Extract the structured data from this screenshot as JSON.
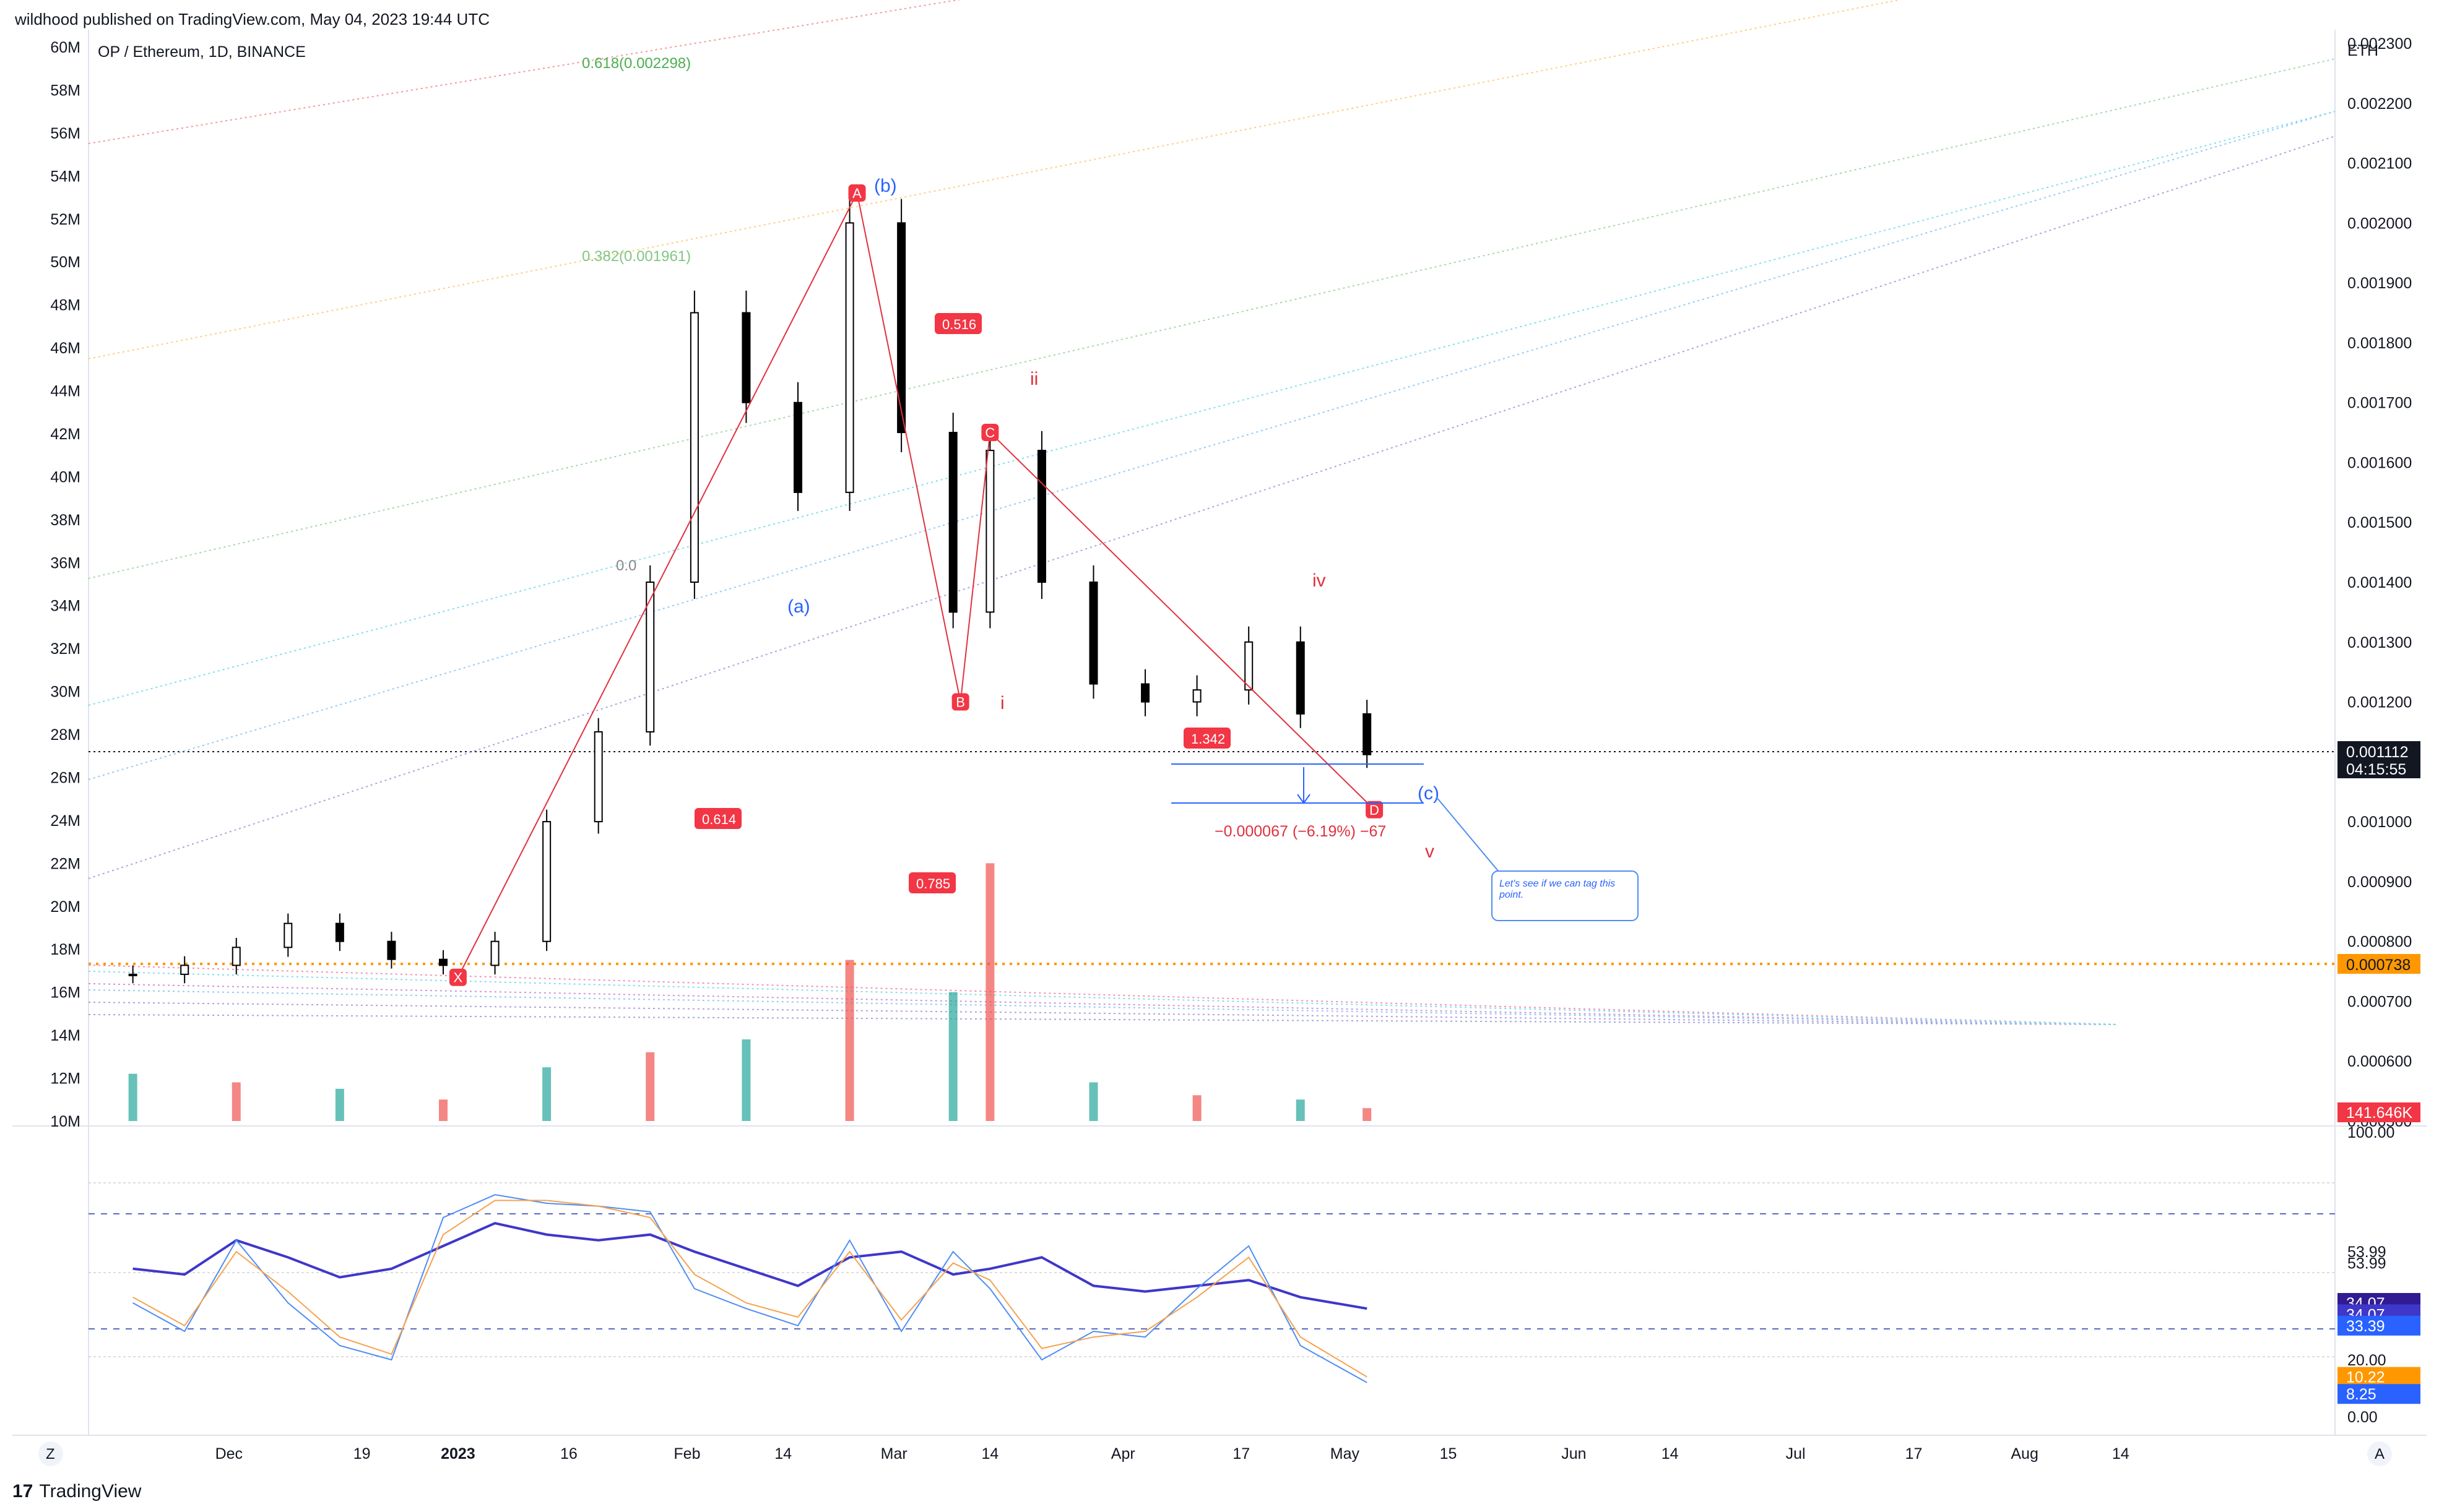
{
  "header": {
    "published": "wildhood published on TradingView.com, May 04, 2023 19:44 UTC"
  },
  "footer": {
    "brand": "TradingView",
    "brand_icon": "tradingview-logo-icon"
  },
  "colors": {
    "candle": "#000000",
    "vol_up": "#26a69a",
    "vol_down": "#ef5350",
    "pattern": "#e0313e",
    "wave_blue": "#2962ff",
    "rsi": "#3f37c9",
    "stoch_k": "#4f8df5",
    "stoch_d": "#f5a34f",
    "tag_red": "#f23645",
    "tag_orange": "#ff9800",
    "tag_dark": "#131722"
  },
  "chart_data": [
    {
      "type": "candlestick",
      "title": "OP / Ethereum, 1D, BINANCE",
      "xlabel": "",
      "ylabel": "",
      "right_axis_unit": "ETH",
      "right_ticks": [
        "0.002300",
        "0.002200",
        "0.002100",
        "0.002000",
        "0.001900",
        "0.001800",
        "0.001700",
        "0.001600",
        "0.001500",
        "0.001400",
        "0.001300",
        "0.001200",
        "0.001100",
        "0.001000",
        "0.000900",
        "0.000800",
        "0.000700",
        "0.000600",
        "0.000500"
      ],
      "left_ticks": [
        "60M",
        "58M",
        "56M",
        "54M",
        "52M",
        "50M",
        "48M",
        "46M",
        "44M",
        "42M",
        "40M",
        "38M",
        "36M",
        "34M",
        "32M",
        "30M",
        "28M",
        "26M",
        "24M",
        "22M",
        "20M",
        "18M",
        "16M",
        "14M",
        "12M",
        "10M"
      ],
      "x_ticks": [
        "Dec",
        "19",
        "2023",
        "16",
        "Feb",
        "14",
        "Mar",
        "14",
        "Apr",
        "17",
        "May",
        "15",
        "Jun",
        "14",
        "Jul",
        "17",
        "Aug",
        "14"
      ],
      "ylim": [
        0.0005,
        0.0023
      ],
      "price_series": [
        {
          "date": "2022-11-18",
          "close": 0.000745
        },
        {
          "date": "2022-11-25",
          "close": 0.00076
        },
        {
          "date": "2022-12-02",
          "close": 0.00079
        },
        {
          "date": "2022-12-09",
          "close": 0.00083
        },
        {
          "date": "2022-12-16",
          "close": 0.0008
        },
        {
          "date": "2022-12-23",
          "close": 0.00077
        },
        {
          "date": "2022-12-30",
          "close": 0.00076
        },
        {
          "date": "2023-01-06",
          "close": 0.0008
        },
        {
          "date": "2023-01-13",
          "close": 0.001
        },
        {
          "date": "2023-01-20",
          "close": 0.00115
        },
        {
          "date": "2023-01-27",
          "close": 0.0014
        },
        {
          "date": "2023-02-02",
          "close": 0.00185
        },
        {
          "date": "2023-02-09",
          "close": 0.0017
        },
        {
          "date": "2023-02-16",
          "close": 0.00155
        },
        {
          "date": "2023-02-23",
          "close": 0.002
        },
        {
          "date": "2023-03-02",
          "close": 0.00165
        },
        {
          "date": "2023-03-09",
          "close": 0.00135
        },
        {
          "date": "2023-03-14",
          "close": 0.00162
        },
        {
          "date": "2023-03-21",
          "close": 0.0014
        },
        {
          "date": "2023-03-28",
          "close": 0.00123
        },
        {
          "date": "2023-04-04",
          "close": 0.0012
        },
        {
          "date": "2023-04-11",
          "close": 0.00122
        },
        {
          "date": "2023-04-18",
          "close": 0.0013
        },
        {
          "date": "2023-04-25",
          "close": 0.00118
        },
        {
          "date": "2023-05-04",
          "close": 0.001112
        }
      ],
      "price_tags": {
        "last": "0.001112",
        "countdown": "04:15:55",
        "level": "0.000738",
        "volume": "141.646K"
      },
      "fib_labels": [
        "0.618(0.002298)",
        "0.382(0.001961)",
        "0.0"
      ],
      "harmonic": {
        "points": [
          {
            "label": "X",
            "date": "2023-01-01",
            "price": 0.00074
          },
          {
            "label": "A",
            "date": "2023-02-24",
            "price": 0.00205
          },
          {
            "label": "B",
            "date": "2023-03-10",
            "price": 0.0012
          },
          {
            "label": "C",
            "date": "2023-03-14",
            "price": 0.00165
          },
          {
            "label": "D",
            "date": "2023-05-05",
            "price": 0.00102
          }
        ],
        "ratios": [
          "0.516",
          "0.614",
          "0.785",
          "1.342"
        ]
      },
      "wave_labels": [
        "(b)",
        "(a)",
        "(c)",
        "ii",
        "i",
        "iv",
        "v"
      ],
      "measure": "−0.000067 (−6.19%) −67",
      "note": "Let's see if we can tag this point.",
      "volume_series": [
        {
          "date": "2022-11-18",
          "value": 12.2
        },
        {
          "date": "2022-12-02",
          "value": 11.8
        },
        {
          "date": "2022-12-16",
          "value": 11.5
        },
        {
          "date": "2022-12-30",
          "value": 11.0
        },
        {
          "date": "2023-01-13",
          "value": 12.5
        },
        {
          "date": "2023-01-27",
          "value": 13.2
        },
        {
          "date": "2023-02-09",
          "value": 13.8
        },
        {
          "date": "2023-02-23",
          "value": 17.5
        },
        {
          "date": "2023-03-09",
          "value": 16.0
        },
        {
          "date": "2023-03-14",
          "value": 22.0
        },
        {
          "date": "2023-03-28",
          "value": 11.8
        },
        {
          "date": "2023-04-11",
          "value": 11.2
        },
        {
          "date": "2023-04-25",
          "value": 11.0
        },
        {
          "date": "2023-05-04",
          "value": 10.6
        }
      ]
    },
    {
      "type": "line",
      "xlabel": "",
      "ylabel": "",
      "ticks": [
        "100.00",
        "53.99",
        "53.99",
        "35.34",
        "35.34",
        "20.00",
        "0.00"
      ],
      "tags": [
        "34.07",
        "34.07",
        "33.39",
        "10.22",
        "8.25"
      ],
      "ylim": [
        0,
        100
      ],
      "series": [
        {
          "values": [
            52,
            50,
            62,
            56,
            49,
            52,
            60,
            68,
            64,
            62,
            64,
            58,
            52,
            46,
            56,
            58,
            50,
            52,
            56,
            46,
            44,
            46,
            48,
            42,
            38
          ]
        },
        {
          "values": [
            40,
            30,
            62,
            40,
            25,
            20,
            70,
            78,
            75,
            74,
            72,
            45,
            38,
            32,
            62,
            30,
            58,
            45,
            20,
            30,
            28,
            45,
            60,
            25,
            12
          ]
        },
        {
          "values": [
            42,
            32,
            58,
            44,
            28,
            22,
            64,
            76,
            76,
            74,
            70,
            50,
            40,
            35,
            58,
            34,
            54,
            48,
            24,
            28,
            30,
            42,
            56,
            28,
            14
          ]
        }
      ]
    }
  ],
  "side_buttons": {
    "left": "Z",
    "right": "A"
  }
}
